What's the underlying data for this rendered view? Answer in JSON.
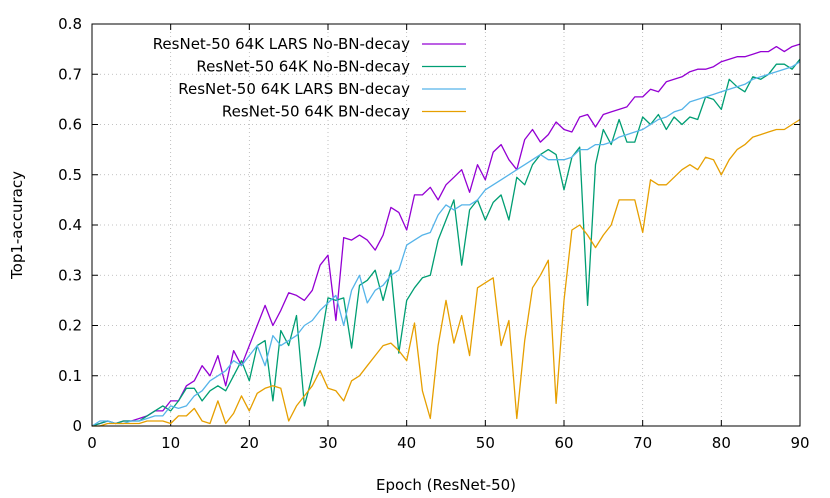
{
  "chart_data": {
    "type": "line",
    "xlabel": "Epoch (ResNet-50)",
    "ylabel": "Top1-accuracy",
    "xlim": [
      0,
      90
    ],
    "ylim": [
      0,
      0.8
    ],
    "xticks": [
      "0",
      "10",
      "20",
      "30",
      "40",
      "50",
      "60",
      "70",
      "80",
      "90"
    ],
    "yticks": [
      "0",
      "0.1",
      "0.2",
      "0.3",
      "0.4",
      "0.5",
      "0.6",
      "0.7",
      "0.8"
    ],
    "grid": true,
    "legend_position": "top-left",
    "series": [
      {
        "name": "ResNet-50 64K LARS No-BN-decay",
        "color": "#9400d3",
        "x": [
          0,
          1,
          2,
          3,
          4,
          5,
          6,
          7,
          8,
          9,
          10,
          11,
          12,
          13,
          14,
          15,
          16,
          17,
          18,
          19,
          20,
          21,
          22,
          23,
          24,
          25,
          26,
          27,
          28,
          29,
          30,
          31,
          32,
          33,
          34,
          35,
          36,
          37,
          38,
          39,
          40,
          41,
          42,
          43,
          44,
          45,
          46,
          47,
          48,
          49,
          50,
          51,
          52,
          53,
          54,
          55,
          56,
          57,
          58,
          59,
          60,
          61,
          62,
          63,
          64,
          65,
          66,
          67,
          68,
          69,
          70,
          71,
          72,
          73,
          74,
          75,
          76,
          77,
          78,
          79,
          80,
          81,
          82,
          83,
          84,
          85,
          86,
          87,
          88,
          89,
          90
        ],
        "y": [
          0.0,
          0.005,
          0.01,
          0.005,
          0.01,
          0.01,
          0.015,
          0.02,
          0.03,
          0.03,
          0.05,
          0.05,
          0.08,
          0.09,
          0.12,
          0.1,
          0.14,
          0.08,
          0.15,
          0.12,
          0.16,
          0.2,
          0.24,
          0.2,
          0.23,
          0.265,
          0.26,
          0.25,
          0.27,
          0.32,
          0.34,
          0.21,
          0.375,
          0.37,
          0.38,
          0.37,
          0.35,
          0.38,
          0.435,
          0.425,
          0.39,
          0.46,
          0.46,
          0.475,
          0.45,
          0.48,
          0.495,
          0.51,
          0.465,
          0.52,
          0.49,
          0.545,
          0.56,
          0.53,
          0.51,
          0.57,
          0.59,
          0.565,
          0.58,
          0.605,
          0.59,
          0.585,
          0.615,
          0.62,
          0.595,
          0.62,
          0.625,
          0.63,
          0.635,
          0.655,
          0.655,
          0.67,
          0.665,
          0.685,
          0.69,
          0.695,
          0.705,
          0.71,
          0.71,
          0.715,
          0.725,
          0.73,
          0.735,
          0.735,
          0.74,
          0.745,
          0.745,
          0.755,
          0.745,
          0.755,
          0.76
        ]
      },
      {
        "name": "ResNet-50 64K No-BN-decay",
        "color": "#009e73",
        "x": [
          0,
          1,
          2,
          3,
          4,
          5,
          6,
          7,
          8,
          9,
          10,
          11,
          12,
          13,
          14,
          15,
          16,
          17,
          18,
          19,
          20,
          21,
          22,
          23,
          24,
          25,
          26,
          27,
          28,
          29,
          30,
          31,
          32,
          33,
          34,
          35,
          36,
          37,
          38,
          39,
          40,
          41,
          42,
          43,
          44,
          45,
          46,
          47,
          48,
          49,
          50,
          51,
          52,
          53,
          54,
          55,
          56,
          57,
          58,
          59,
          60,
          61,
          62,
          63,
          64,
          65,
          66,
          67,
          68,
          69,
          70,
          71,
          72,
          73,
          74,
          75,
          76,
          77,
          78,
          79,
          80,
          81,
          82,
          83,
          84,
          85,
          86,
          87,
          88,
          89,
          90
        ],
        "y": [
          0.0,
          0.005,
          0.01,
          0.005,
          0.01,
          0.01,
          0.01,
          0.02,
          0.03,
          0.04,
          0.03,
          0.05,
          0.075,
          0.075,
          0.05,
          0.07,
          0.08,
          0.07,
          0.1,
          0.13,
          0.09,
          0.16,
          0.17,
          0.05,
          0.19,
          0.16,
          0.22,
          0.04,
          0.1,
          0.16,
          0.255,
          0.25,
          0.255,
          0.155,
          0.28,
          0.29,
          0.31,
          0.25,
          0.31,
          0.145,
          0.25,
          0.275,
          0.295,
          0.3,
          0.37,
          0.41,
          0.45,
          0.32,
          0.43,
          0.45,
          0.41,
          0.445,
          0.46,
          0.41,
          0.495,
          0.48,
          0.52,
          0.54,
          0.55,
          0.54,
          0.47,
          0.535,
          0.555,
          0.24,
          0.52,
          0.59,
          0.56,
          0.61,
          0.565,
          0.565,
          0.615,
          0.6,
          0.62,
          0.59,
          0.615,
          0.6,
          0.615,
          0.61,
          0.655,
          0.65,
          0.63,
          0.69,
          0.675,
          0.665,
          0.695,
          0.69,
          0.7,
          0.72,
          0.72,
          0.71,
          0.73
        ]
      },
      {
        "name": "ResNet-50 64K LARS BN-decay",
        "color": "#56b4e9",
        "x": [
          0,
          1,
          2,
          3,
          4,
          5,
          6,
          7,
          8,
          9,
          10,
          11,
          12,
          13,
          14,
          15,
          16,
          17,
          18,
          19,
          20,
          21,
          22,
          23,
          24,
          25,
          26,
          27,
          28,
          29,
          30,
          31,
          32,
          33,
          34,
          35,
          36,
          37,
          38,
          39,
          40,
          41,
          42,
          43,
          44,
          45,
          46,
          47,
          48,
          49,
          50,
          51,
          52,
          53,
          54,
          55,
          56,
          57,
          58,
          59,
          60,
          61,
          62,
          63,
          64,
          65,
          66,
          67,
          68,
          69,
          70,
          71,
          72,
          73,
          74,
          75,
          76,
          77,
          78,
          79,
          80,
          81,
          82,
          83,
          84,
          85,
          86,
          87,
          88,
          89,
          90
        ],
        "y": [
          0.0,
          0.01,
          0.01,
          0.005,
          0.005,
          0.01,
          0.01,
          0.015,
          0.02,
          0.02,
          0.04,
          0.035,
          0.04,
          0.06,
          0.07,
          0.09,
          0.1,
          0.11,
          0.13,
          0.12,
          0.14,
          0.16,
          0.12,
          0.18,
          0.16,
          0.17,
          0.18,
          0.2,
          0.21,
          0.23,
          0.245,
          0.26,
          0.2,
          0.27,
          0.3,
          0.245,
          0.27,
          0.28,
          0.3,
          0.31,
          0.36,
          0.37,
          0.38,
          0.385,
          0.42,
          0.44,
          0.43,
          0.44,
          0.44,
          0.45,
          0.47,
          0.48,
          0.49,
          0.5,
          0.51,
          0.52,
          0.53,
          0.54,
          0.53,
          0.53,
          0.53,
          0.535,
          0.55,
          0.55,
          0.56,
          0.56,
          0.565,
          0.575,
          0.58,
          0.585,
          0.59,
          0.6,
          0.61,
          0.615,
          0.625,
          0.63,
          0.645,
          0.65,
          0.655,
          0.66,
          0.665,
          0.67,
          0.675,
          0.68,
          0.69,
          0.695,
          0.7,
          0.705,
          0.71,
          0.715,
          0.725
        ]
      },
      {
        "name": "ResNet-50 64K BN-decay",
        "color": "#e69f00",
        "x": [
          0,
          1,
          2,
          3,
          4,
          5,
          6,
          7,
          8,
          9,
          10,
          11,
          12,
          13,
          14,
          15,
          16,
          17,
          18,
          19,
          20,
          21,
          22,
          23,
          24,
          25,
          26,
          27,
          28,
          29,
          30,
          31,
          32,
          33,
          34,
          35,
          36,
          37,
          38,
          39,
          40,
          41,
          42,
          43,
          44,
          45,
          46,
          47,
          48,
          49,
          50,
          51,
          52,
          53,
          54,
          55,
          56,
          57,
          58,
          59,
          60,
          61,
          62,
          63,
          64,
          65,
          66,
          67,
          68,
          69,
          70,
          71,
          72,
          73,
          74,
          75,
          76,
          77,
          78,
          79,
          80,
          81,
          82,
          83,
          84,
          85,
          86,
          87,
          88,
          89,
          90
        ],
        "y": [
          0.0,
          0.0,
          0.005,
          0.005,
          0.005,
          0.005,
          0.005,
          0.01,
          0.01,
          0.01,
          0.005,
          0.02,
          0.02,
          0.035,
          0.01,
          0.005,
          0.05,
          0.005,
          0.025,
          0.06,
          0.03,
          0.065,
          0.075,
          0.08,
          0.075,
          0.01,
          0.04,
          0.06,
          0.08,
          0.11,
          0.075,
          0.07,
          0.05,
          0.09,
          0.1,
          0.12,
          0.14,
          0.16,
          0.165,
          0.15,
          0.13,
          0.205,
          0.07,
          0.015,
          0.16,
          0.25,
          0.165,
          0.22,
          0.14,
          0.275,
          0.285,
          0.295,
          0.16,
          0.21,
          0.015,
          0.17,
          0.275,
          0.3,
          0.33,
          0.045,
          0.25,
          0.39,
          0.4,
          0.38,
          0.355,
          0.38,
          0.4,
          0.45,
          0.45,
          0.45,
          0.385,
          0.49,
          0.48,
          0.48,
          0.495,
          0.51,
          0.52,
          0.51,
          0.535,
          0.53,
          0.5,
          0.53,
          0.55,
          0.56,
          0.575,
          0.58,
          0.585,
          0.59,
          0.59,
          0.6,
          0.61
        ]
      }
    ]
  }
}
